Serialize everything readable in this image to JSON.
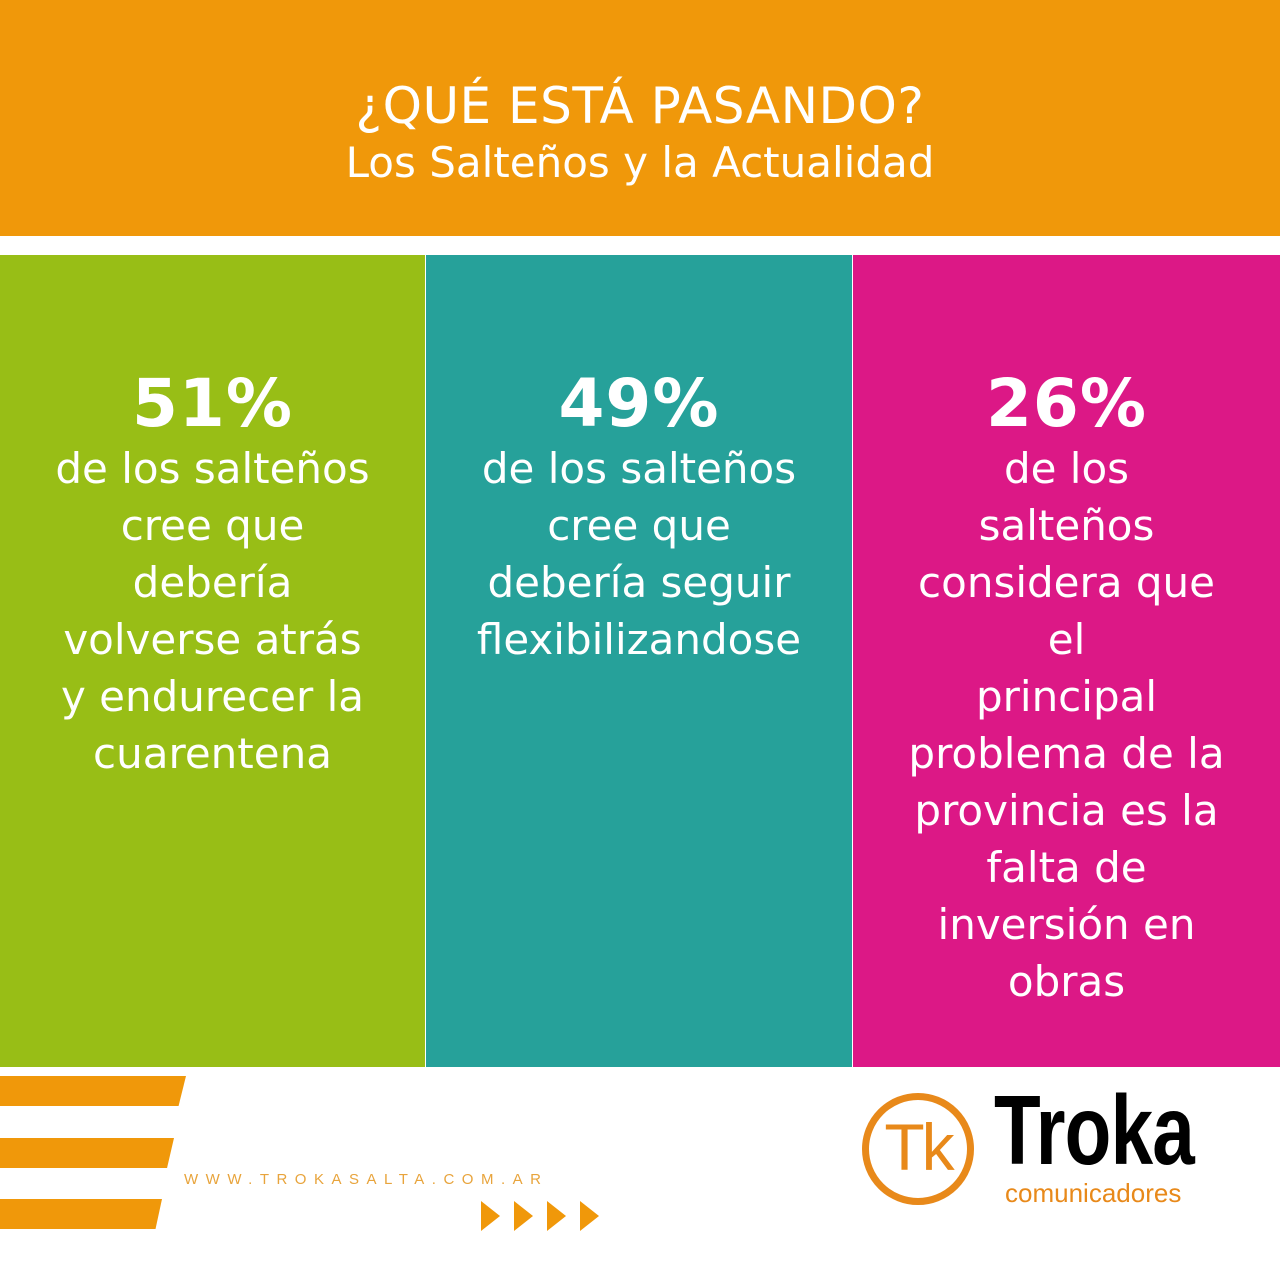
{
  "header": {
    "title": "¿QUÉ ESTÁ PASANDO?",
    "subtitle": "Los Salteños y la Actualidad",
    "background_color": "#F0980A"
  },
  "columns": [
    {
      "percent": "51%",
      "description": "de los salteños\ncree que\n    debería\nvolverse atrás\ny endurecer la\ncuarentena",
      "color": "#98BE16"
    },
    {
      "percent": "49%",
      "description": "de los salteños\ncree que\ndebería seguir\nflexibilizandose",
      "color": "#26A19A"
    },
    {
      "percent": "26%",
      "description": "de los\nsalteños\nconsidera que\nel\nprincipal\nproblema de la\nprovincia es la\nfalta de\ninversión en\nobras",
      "color": "#DC1886"
    }
  ],
  "footer": {
    "website": "WWW.TROKASALTA.COM.AR",
    "decorations": [
      "stripe",
      "stripe",
      "stripe",
      "arrow-right",
      "arrow-right",
      "arrow-right",
      "arrow-right"
    ],
    "logo": {
      "monogram": "Tk",
      "name": "Troka",
      "tagline": "comunicadores",
      "accent_color": "#E8891A"
    }
  }
}
